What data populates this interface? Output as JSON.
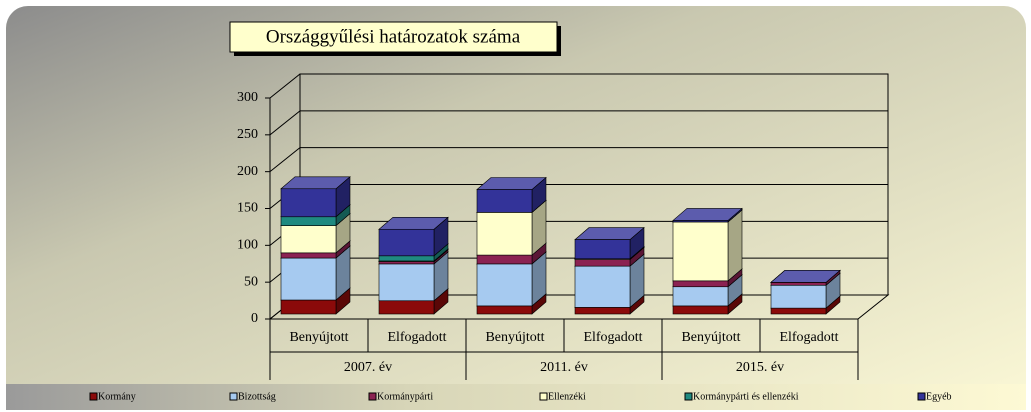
{
  "chart_data": {
    "type": "bar",
    "stacked": true,
    "title": "Országgyűlési határozatok száma",
    "categories": [
      "Benyújtott",
      "Elfogadott",
      "Benyújtott",
      "Elfogadott",
      "Benyújtott",
      "Elfogadott"
    ],
    "groups": [
      "2007. év",
      "2011. év",
      "2015. év"
    ],
    "series": [
      {
        "name": "Kormány",
        "color": "#8b0a0a",
        "values": [
          19,
          18,
          11,
          9,
          11,
          8
        ]
      },
      {
        "name": "Bizottság",
        "color": "#a6caf0",
        "values": [
          57,
          50,
          57,
          56,
          26,
          31
        ]
      },
      {
        "name": "Kormánypárti",
        "color": "#8b2252",
        "values": [
          7,
          3,
          12,
          9,
          8,
          4
        ]
      },
      {
        "name": "Ellenzéki",
        "color": "#ffffcc",
        "values": [
          37,
          1,
          58,
          1,
          80,
          0
        ]
      },
      {
        "name": "Kormánypárti és ellenzéki",
        "color": "#1f8a80",
        "values": [
          12,
          7,
          0,
          0,
          0,
          0
        ]
      },
      {
        "name": "Egyéb",
        "color": "#333399",
        "values": [
          38,
          36,
          31,
          26,
          2,
          0
        ]
      }
    ],
    "ylim": [
      0,
      300
    ],
    "yticks": [
      0,
      50,
      100,
      150,
      200,
      250,
      300
    ],
    "grid": true
  }
}
